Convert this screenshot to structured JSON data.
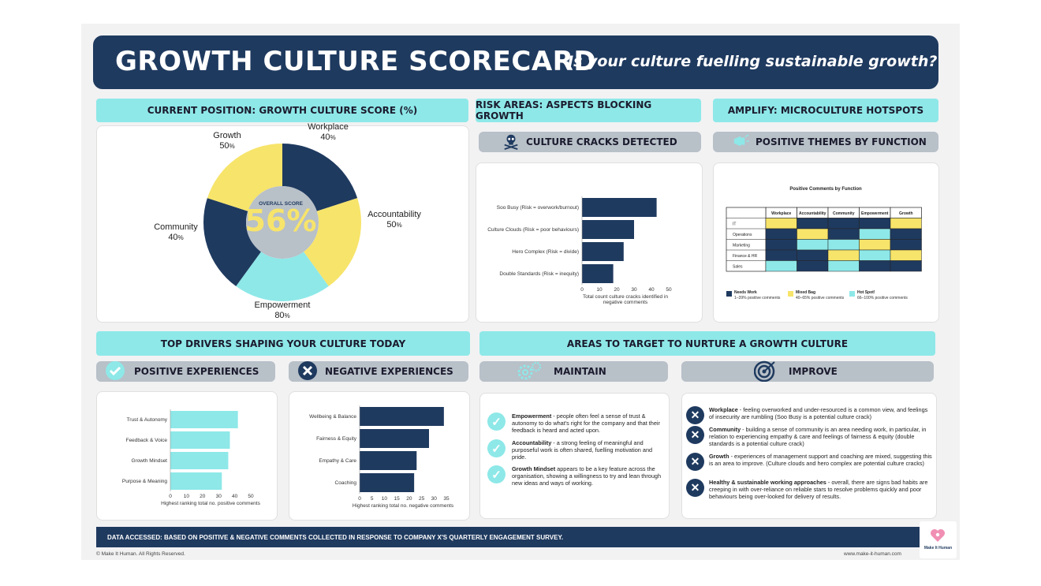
{
  "title": {
    "main": "GROWTH CULTURE SCORECARD",
    "sub": "Is your culture fuelling sustainable growth?"
  },
  "sections": {
    "current": "CURRENT POSITION: GROWTH CULTURE SCORE (%)",
    "risk": "RISK AREAS: ASPECTS BLOCKING GROWTH",
    "amplify": "AMPLIFY: MICROCULTURE HOTSPOTS",
    "cracks": "CULTURE CRACKS DETECTED",
    "positive_themes": "POSITIVE THEMES BY FUNCTION",
    "drivers": "TOP DRIVERS SHAPING YOUR CULTURE TODAY",
    "areas": "AREAS TO TARGET TO NURTURE A GROWTH CULTURE",
    "pos_exp": "POSITIVE EXPERIENCES",
    "neg_exp": "NEGATIVE EXPERIENCES",
    "maintain": "MAINTAIN",
    "improve": "IMPROVE"
  },
  "donut": {
    "overall_label": "OVERALL SCORE",
    "overall_value": "56%",
    "segments": [
      {
        "name": "Workplace",
        "value": "40",
        "color": "#1f3a5f"
      },
      {
        "name": "Accountability",
        "value": "50",
        "color": "#f7e46a"
      },
      {
        "name": "Empowerment",
        "value": "80",
        "color": "#8ee8e8"
      },
      {
        "name": "Community",
        "value": "40",
        "color": "#1f3a5f"
      },
      {
        "name": "Growth",
        "value": "50",
        "color": "#f7e46a"
      }
    ],
    "unit": "%"
  },
  "chart_data": [
    {
      "type": "bar",
      "orientation": "horizontal",
      "categories": [
        "Soo Busy (Risk = overwork/burnout)",
        "Culture Clouds (Risk = poor behaviours)",
        "Hero Complex (Risk = divide)",
        "Double Standards (Risk = inequity)"
      ],
      "values": [
        43,
        30,
        24,
        18
      ],
      "xlim": [
        0,
        50
      ],
      "xticks": [
        "0",
        "10",
        "20",
        "30",
        "40",
        "50"
      ],
      "xlabel": "Total count culture cracks identified in negative comments",
      "color": "#1f3a5f"
    },
    {
      "type": "bar",
      "orientation": "horizontal",
      "categories": [
        "Trust & Autonomy",
        "Feedback & Voice",
        "Growth Mindset",
        "Purpose & Meaning"
      ],
      "values": [
        42,
        37,
        36,
        32
      ],
      "xlim": [
        0,
        50
      ],
      "xticks": [
        "0",
        "10",
        "20",
        "30",
        "40",
        "50"
      ],
      "xlabel": "Highest ranking total no. positive comments",
      "color": "#8ee8e8"
    },
    {
      "type": "bar",
      "orientation": "horizontal",
      "categories": [
        "Wellbeing & Balance",
        "Fairness & Equity",
        "Empathy & Care",
        "Coaching"
      ],
      "values": [
        34,
        28,
        23,
        22
      ],
      "xlim": [
        0,
        35
      ],
      "xticks": [
        "0",
        "5",
        "10",
        "15",
        "20",
        "25",
        "30",
        "35"
      ],
      "xlabel": "Highest ranking total no. negative comments",
      "color": "#1f3a5f"
    },
    {
      "type": "heatmap",
      "title": "Positive Comments by Function",
      "columns": [
        "Workplace",
        "Accountability",
        "Community",
        "Empowerment",
        "Growth"
      ],
      "rows": [
        "IT",
        "Operations",
        "Marketing",
        "Finance & HR",
        "Sales"
      ],
      "values": [
        [
          "mixed",
          "navy",
          "navy",
          "navy",
          "mixed"
        ],
        [
          "navy",
          "mixed",
          "navy",
          "hot",
          "navy"
        ],
        [
          "navy",
          "hot",
          "hot",
          "mixed",
          "navy"
        ],
        [
          "navy",
          "navy",
          "mixed",
          "hot",
          "mixed"
        ],
        [
          "hot",
          "navy",
          "hot",
          "navy",
          "navy"
        ]
      ],
      "legend": [
        {
          "key": "navy",
          "label": "Needs Work",
          "desc": "1–39% positive comments",
          "color": "#1f3a5f"
        },
        {
          "key": "mixed",
          "label": "Mixed Bag",
          "desc": "40–65% positive comments",
          "color": "#f7e46a"
        },
        {
          "key": "hot",
          "label": "Hot Spot!",
          "desc": "66–100% positive comments",
          "color": "#8ee8e8"
        }
      ]
    }
  ],
  "maintain": [
    {
      "title": "Empowerment",
      "text": " - people often feel a sense of trust & autonomy to do what's right for the company and that their feedback is heard and acted upon."
    },
    {
      "title": "Accountability",
      "text": " - a strong feeling of meaningful and purposeful work is often shared, fuelling motivation and pride."
    },
    {
      "title": "Growth Mindset",
      "text": " appears to be a key feature across the organisation, showing a willingness to try and lean through new ideas and ways of working."
    }
  ],
  "improve": [
    {
      "title": "Workplace",
      "text": " - feeling overworked and under-resourced is a common view, and feelings of insecurity are rumbling (Soo Busy is a potential culture crack)"
    },
    {
      "title": "Community",
      "text": " - building a sense of community is an area needing work, in particular, in relation to experiencing empathy & care and feelings of fairness & equity (double standards is a potential culture crack)"
    },
    {
      "title": "Growth",
      "text": " - experiences of management support and coaching are mixed, suggesting this is an area to improve. (Culture clouds and hero complex are potential culture cracks)"
    },
    {
      "title": "Healthy & sustainable working approaches",
      "text": " - overall, there are signs bad habits are creeping in with over-reliance on reliable stars to resolve problems quickly and poor behaviours being over-looked for delivery of results."
    }
  ],
  "footer": {
    "data_note": "DATA ACCESSED: BASED ON POSITIVE & NEGATIVE COMMENTS COLLECTED IN RESPONSE TO COMPANY X'S QUARTERLY ENGAGEMENT SURVEY.",
    "copyright": "© Make It Human. All Rights Reserved.",
    "url": "www.make-it-human.com",
    "logo_text": "Make It Human"
  },
  "icons": {
    "cracks": "skull-crossbones-icon",
    "themes": "megaphone-icon",
    "positive": "check-circle-icon",
    "negative": "x-circle-icon",
    "maintain": "gears-icon",
    "improve": "target-icon",
    "logo": "heart-logo-icon"
  }
}
